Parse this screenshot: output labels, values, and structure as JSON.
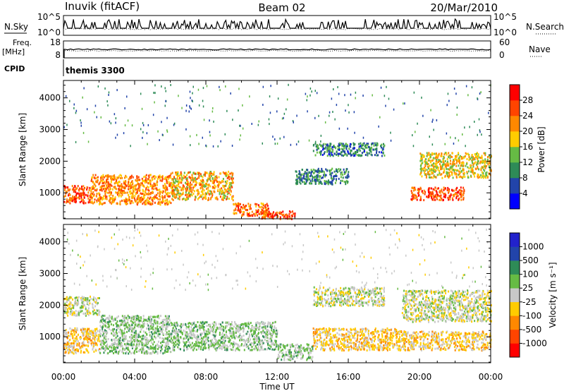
{
  "header": {
    "station": "Inuvik (fitACF)",
    "beam": "Beam 02",
    "date": "20/Mar/2010"
  },
  "strip_labels": {
    "nsky": "N.Sky",
    "nsearch": "N.Search",
    "freq_top": "Freq.",
    "freq_unit": "[MHz]",
    "nave": "Nave",
    "cpid": "CPID",
    "cpid_value": "themis 3300"
  },
  "strip_ticks": {
    "noise_left": [
      "10^5",
      "10^0"
    ],
    "noise_right": [
      "10^5",
      "10^0"
    ],
    "freq_left": [
      "18",
      "8"
    ],
    "freq_right": [
      "60",
      "0"
    ]
  },
  "colors": {
    "power": [
      "#0000ff",
      "#2244aa",
      "#2e8b57",
      "#66bb44",
      "#ffcc00",
      "#ff8800",
      "#ff4400",
      "#ff0000"
    ],
    "velocity": [
      "#ff0000",
      "#ff4400",
      "#ff8800",
      "#ffcc00",
      "#c8c8c8",
      "#66bb44",
      "#2e8b57",
      "#2244aa",
      "#2222cc"
    ]
  },
  "chart_data": [
    {
      "type": "heatmap",
      "title": "",
      "xlabel": "Time UT",
      "ylabel": "Slant Range [km]",
      "x_ticks": [
        "00:00",
        "04:00",
        "08:00",
        "12:00",
        "16:00",
        "20:00",
        "00:00"
      ],
      "y_ticks": [
        "1000",
        "2000",
        "3000",
        "4000"
      ],
      "xlim": [
        0,
        24
      ],
      "ylim": [
        180,
        4550
      ],
      "colorbar": {
        "label": "Power [dB]",
        "ticks": [
          "4",
          "8",
          "12",
          "16",
          "20",
          "24",
          "28"
        ],
        "range": [
          0,
          32
        ]
      },
      "echo_bands": [
        {
          "t": [
            0,
            1.5
          ],
          "r": [
            700,
            1250
          ],
          "value": 26
        },
        {
          "t": [
            1.5,
            6
          ],
          "r": [
            650,
            1600
          ],
          "value": 22
        },
        {
          "t": [
            6,
            9.5
          ],
          "r": [
            800,
            1700
          ],
          "value": 20
        },
        {
          "t": [
            9.5,
            11.5
          ],
          "r": [
            300,
            700
          ],
          "value": 24
        },
        {
          "t": [
            11,
            13
          ],
          "r": [
            200,
            450
          ],
          "value": 26
        },
        {
          "t": [
            13,
            16
          ],
          "r": [
            1300,
            1800
          ],
          "value": 10
        },
        {
          "t": [
            14,
            18
          ],
          "r": [
            2200,
            2600
          ],
          "value": 9
        },
        {
          "t": [
            19.5,
            22.5
          ],
          "r": [
            800,
            1200
          ],
          "value": 26
        },
        {
          "t": [
            20,
            24
          ],
          "r": [
            1500,
            2300
          ],
          "value": 18
        }
      ]
    },
    {
      "type": "heatmap",
      "title": "",
      "xlabel": "Time UT",
      "ylabel": "Slant Range [km]",
      "x_ticks": [
        "00:00",
        "04:00",
        "08:00",
        "12:00",
        "16:00",
        "20:00",
        "00:00"
      ],
      "y_ticks": [
        "1000",
        "2000",
        "3000",
        "4000"
      ],
      "xlim": [
        0,
        24
      ],
      "ylim": [
        180,
        4550
      ],
      "colorbar": {
        "label": "Velocity [m s⁻¹]",
        "ticks": [
          "-1000",
          "-500",
          "-100",
          "-25",
          "25",
          "100",
          "500",
          "1000"
        ],
        "range": [
          -1000,
          1000
        ]
      },
      "echo_bands": [
        {
          "t": [
            0,
            2
          ],
          "r": [
            500,
            1300
          ],
          "value": -200
        },
        {
          "t": [
            0,
            2
          ],
          "r": [
            1700,
            2300
          ],
          "value": 0
        },
        {
          "t": [
            2,
            6
          ],
          "r": [
            500,
            1700
          ],
          "value": 150
        },
        {
          "t": [
            6,
            12
          ],
          "r": [
            600,
            1500
          ],
          "value": 150
        },
        {
          "t": [
            12,
            14
          ],
          "r": [
            300,
            800
          ],
          "value": 150
        },
        {
          "t": [
            14,
            19
          ],
          "r": [
            600,
            1300
          ],
          "value": -200
        },
        {
          "t": [
            14,
            18
          ],
          "r": [
            2000,
            2600
          ],
          "value": 0
        },
        {
          "t": [
            19,
            24
          ],
          "r": [
            600,
            1200
          ],
          "value": -200
        },
        {
          "t": [
            19,
            24
          ],
          "r": [
            1500,
            2500
          ],
          "value": 0
        }
      ]
    }
  ]
}
